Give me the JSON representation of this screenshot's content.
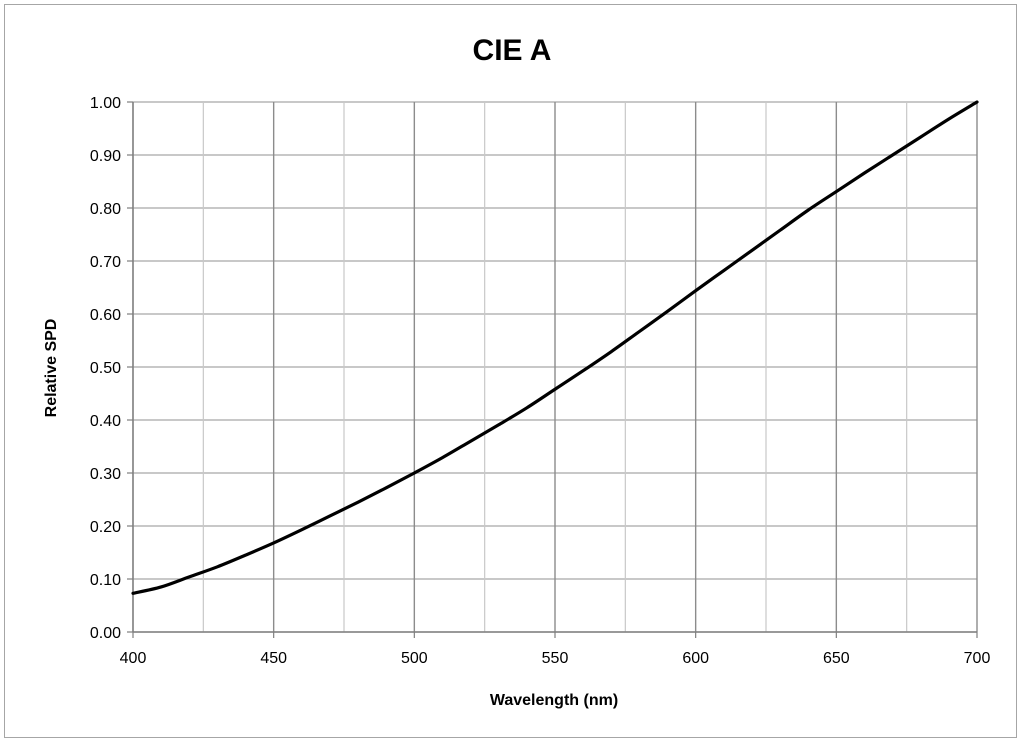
{
  "chart_data": {
    "type": "line",
    "title": "CIE A",
    "xlabel": "Wavelength (nm)",
    "ylabel": "Relative SPD",
    "xlim": [
      400,
      700
    ],
    "ylim": [
      0,
      1
    ],
    "x_ticks": [
      400,
      450,
      500,
      550,
      600,
      650,
      700
    ],
    "x_tick_labels": [
      "400",
      "450",
      "500",
      "550",
      "600",
      "650",
      "700"
    ],
    "x_minor_gridlines": [
      425,
      475,
      525,
      575,
      625,
      675
    ],
    "y_ticks": [
      0,
      0.1,
      0.2,
      0.3,
      0.4,
      0.5,
      0.6,
      0.7,
      0.8,
      0.9,
      1.0
    ],
    "y_tick_labels": [
      "0.00",
      "0.10",
      "0.20",
      "0.30",
      "0.40",
      "0.50",
      "0.60",
      "0.70",
      "0.80",
      "0.90",
      "1.00"
    ],
    "grid": true,
    "legend": "none",
    "series": [
      {
        "color": "#000000",
        "x": [
          400,
          410,
          420,
          430,
          440,
          450,
          460,
          470,
          480,
          490,
          500,
          510,
          520,
          530,
          540,
          550,
          560,
          570,
          580,
          590,
          600,
          610,
          620,
          630,
          640,
          650,
          660,
          670,
          680,
          690,
          700
        ],
        "y": [
          0.073,
          0.085,
          0.104,
          0.123,
          0.145,
          0.168,
          0.193,
          0.219,
          0.245,
          0.272,
          0.3,
          0.329,
          0.36,
          0.391,
          0.423,
          0.458,
          0.493,
          0.529,
          0.567,
          0.605,
          0.644,
          0.682,
          0.72,
          0.758,
          0.796,
          0.831,
          0.866,
          0.9,
          0.934,
          0.968,
          1.0
        ]
      }
    ]
  }
}
